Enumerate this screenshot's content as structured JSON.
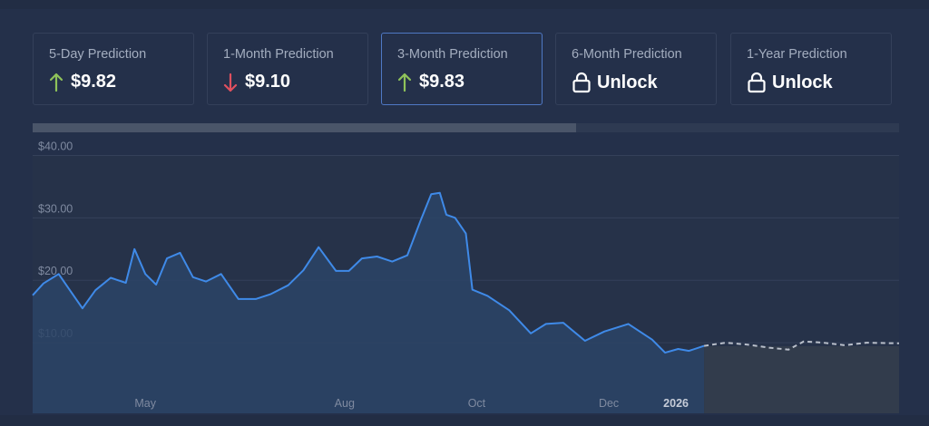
{
  "cards": [
    {
      "label": "5-Day Prediction",
      "value": "$9.82",
      "icon": "arrow-up-icon",
      "active": false
    },
    {
      "label": "1-Month Prediction",
      "value": "$9.10",
      "icon": "arrow-down-icon",
      "active": false
    },
    {
      "label": "3-Month Prediction",
      "value": "$9.83",
      "icon": "arrow-up-icon",
      "active": true
    },
    {
      "label": "6-Month Prediction",
      "value": "Unlock",
      "icon": "lock-icon",
      "active": false
    },
    {
      "label": "1-Year Prediction",
      "value": "Unlock",
      "icon": "lock-icon",
      "active": false
    }
  ],
  "colors": {
    "up": "#8fc25a",
    "down": "#e0505f",
    "line": "#3f8ae8",
    "forecast": "#b9bfca",
    "accent": "#4f78c4"
  },
  "range_selector": {
    "fraction": 0.627
  },
  "chart_data": {
    "type": "line",
    "title": "",
    "xlabel": "",
    "ylabel": "",
    "ylim": [
      0,
      45
    ],
    "y_ticks": [
      10,
      20,
      30,
      40
    ],
    "y_tick_labels": [
      "$10.00",
      "$20.00",
      "$30.00",
      "$40.00"
    ],
    "x_ticks": [
      {
        "label": "May",
        "x": "2025-05-01"
      },
      {
        "label": "Aug",
        "x": "2025-08-01"
      },
      {
        "label": "Oct",
        "x": "2025-10-01"
      },
      {
        "label": "Dec",
        "x": "2025-12-01"
      },
      {
        "label": "2026",
        "x": "2026-01-01"
      }
    ],
    "xlim": [
      "2025-03-10",
      "2026-04-14"
    ],
    "grid": true,
    "series": [
      {
        "kind": "historical",
        "points": [
          [
            "2025-03-10",
            17.6
          ],
          [
            "2025-03-15",
            19.5
          ],
          [
            "2025-03-22",
            21.0
          ],
          [
            "2025-03-27",
            18.5
          ],
          [
            "2025-04-02",
            15.5
          ],
          [
            "2025-04-08",
            18.4
          ],
          [
            "2025-04-15",
            20.4
          ],
          [
            "2025-04-22",
            19.6
          ],
          [
            "2025-04-26",
            25.0
          ],
          [
            "2025-05-01",
            21.0
          ],
          [
            "2025-05-06",
            19.3
          ],
          [
            "2025-05-11",
            23.5
          ],
          [
            "2025-05-17",
            24.4
          ],
          [
            "2025-05-23",
            20.5
          ],
          [
            "2025-05-29",
            19.8
          ],
          [
            "2025-06-05",
            21.0
          ],
          [
            "2025-06-13",
            17.0
          ],
          [
            "2025-06-21",
            17.0
          ],
          [
            "2025-06-28",
            17.8
          ],
          [
            "2025-07-06",
            19.2
          ],
          [
            "2025-07-13",
            21.6
          ],
          [
            "2025-07-20",
            25.3
          ],
          [
            "2025-07-28",
            21.5
          ],
          [
            "2025-08-03",
            21.5
          ],
          [
            "2025-08-09",
            23.5
          ],
          [
            "2025-08-16",
            23.8
          ],
          [
            "2025-08-23",
            23.0
          ],
          [
            "2025-08-30",
            24.0
          ],
          [
            "2025-09-05",
            29.5
          ],
          [
            "2025-09-10",
            33.8
          ],
          [
            "2025-09-14",
            34.0
          ],
          [
            "2025-09-17",
            30.5
          ],
          [
            "2025-09-21",
            30.0
          ],
          [
            "2025-09-26",
            27.5
          ],
          [
            "2025-09-29",
            18.5
          ],
          [
            "2025-10-06",
            17.5
          ],
          [
            "2025-10-16",
            15.2
          ],
          [
            "2025-10-26",
            11.5
          ],
          [
            "2025-11-02",
            13.0
          ],
          [
            "2025-11-10",
            13.2
          ],
          [
            "2025-11-20",
            10.3
          ],
          [
            "2025-11-29",
            11.8
          ],
          [
            "2025-12-10",
            13.0
          ],
          [
            "2025-12-21",
            10.5
          ],
          [
            "2025-12-27",
            8.4
          ],
          [
            "2026-01-02",
            9.0
          ],
          [
            "2026-01-07",
            8.7
          ],
          [
            "2026-01-14",
            9.5
          ]
        ]
      },
      {
        "kind": "forecast",
        "points": [
          [
            "2026-01-14",
            9.5
          ],
          [
            "2026-01-24",
            10.0
          ],
          [
            "2026-02-03",
            9.7
          ],
          [
            "2026-02-13",
            9.2
          ],
          [
            "2026-02-22",
            8.9
          ],
          [
            "2026-03-01",
            10.2
          ],
          [
            "2026-03-10",
            10.0
          ],
          [
            "2026-03-20",
            9.6
          ],
          [
            "2026-03-30",
            10.0
          ],
          [
            "2026-04-14",
            9.9
          ]
        ]
      }
    ]
  }
}
